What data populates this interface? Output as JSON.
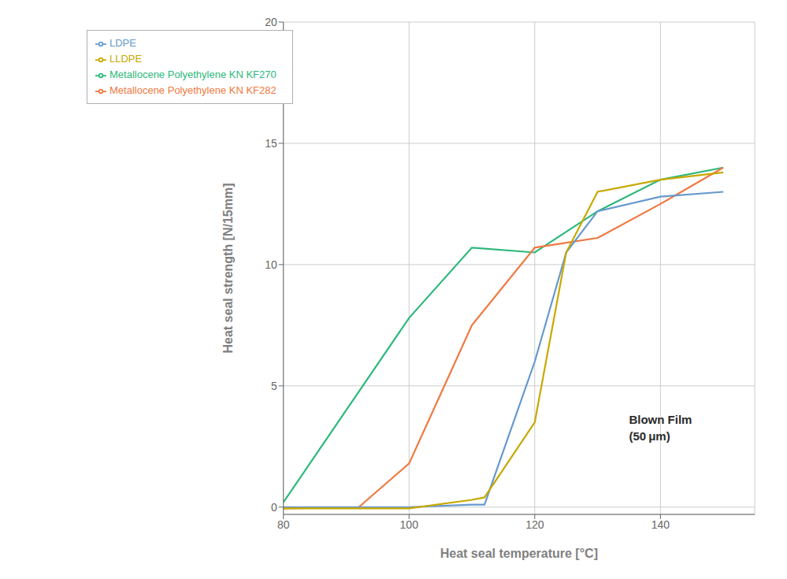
{
  "chart_data": {
    "type": "line",
    "x_label": "Heat seal temperature [°C]",
    "y_label": "Heat seal strength [N/15mm]",
    "xlim": [
      80,
      155
    ],
    "ylim": [
      -0.3,
      20
    ],
    "xticks": [
      80,
      100,
      120,
      140
    ],
    "yticks": [
      0,
      5,
      10,
      15,
      20
    ],
    "grid": true,
    "legend": "upper left",
    "series": [
      {
        "name": "Metallocene Polyethylene KN KF270",
        "color": "#2db87c",
        "x": [
          80,
          90,
          100,
          110,
          120,
          130,
          140,
          150
        ],
        "values": [
          0.2,
          4.0,
          7.8,
          10.7,
          10.5,
          12.2,
          13.5,
          14.0
        ]
      },
      {
        "name": "Metallocene Polyethylene KN KF282",
        "color": "#f07840",
        "x": [
          80,
          92,
          100,
          110,
          120,
          130,
          140,
          150
        ],
        "values": [
          -0.05,
          0.0,
          1.8,
          7.5,
          10.7,
          11.1,
          12.5,
          14.0
        ]
      },
      {
        "name": "LDPE",
        "color": "#6699cc",
        "x": [
          80,
          100,
          110,
          112,
          120,
          125,
          130,
          140,
          150
        ],
        "values": [
          0.0,
          0.0,
          0.1,
          0.1,
          6.0,
          10.5,
          12.2,
          12.8,
          13.0
        ]
      },
      {
        "name": "LLDPE",
        "color": "#c8a800",
        "x": [
          80,
          100,
          110,
          112,
          120,
          125,
          130,
          140,
          150
        ],
        "values": [
          -0.05,
          -0.05,
          0.3,
          0.4,
          3.5,
          10.5,
          13.0,
          13.5,
          13.8
        ]
      }
    ],
    "annotations": [
      {
        "text": [
          "Blown Film",
          "(50 μm)"
        ],
        "x": 135,
        "y": 3.3
      }
    ]
  }
}
